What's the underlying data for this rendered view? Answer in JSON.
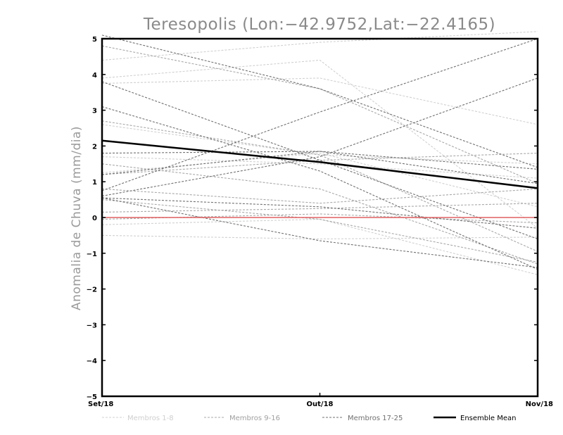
{
  "chart_data": {
    "type": "line",
    "title": "Teresopolis (Lon:−42.9752,Lat:−22.4165)",
    "ylabel": "Anomalia de Chuva (mm/dia)",
    "xlabel": "",
    "categories": [
      "Set/18",
      "Out/18",
      "Nov/18"
    ],
    "ylim": [
      -5,
      5
    ],
    "yticks": [
      -5,
      -4,
      -3,
      -2,
      -1,
      0,
      1,
      2,
      3,
      4,
      5
    ],
    "ytick_labels": [
      "−5",
      "−4",
      "−3",
      "−2",
      "−1",
      "0",
      "1",
      "2",
      "3",
      "4",
      "5"
    ],
    "grid": false,
    "legend_position": "bottom",
    "zero_line_color": "#e06060",
    "legend": [
      {
        "label": "Membros 1-8",
        "color": "#d0d0d0",
        "style": "dashed"
      },
      {
        "label": "Membros 9-16",
        "color": "#a8a8a8",
        "style": "dashed"
      },
      {
        "label": "Membros 17-25",
        "color": "#707070",
        "style": "dashed"
      },
      {
        "label": "Ensemble Mean",
        "color": "#000000",
        "style": "solid"
      }
    ],
    "series": [
      {
        "group": 0,
        "values": [
          4.4,
          4.9,
          5.2
        ]
      },
      {
        "group": 0,
        "values": [
          3.75,
          3.9,
          2.6
        ]
      },
      {
        "group": 0,
        "values": [
          2.6,
          1.75,
          1.5
        ]
      },
      {
        "group": 0,
        "values": [
          1.7,
          1.5,
          1.1
        ]
      },
      {
        "group": 0,
        "values": [
          1.25,
          1.8,
          0.3
        ]
      },
      {
        "group": 0,
        "values": [
          -0.2,
          -0.05,
          -1.6
        ]
      },
      {
        "group": 0,
        "values": [
          -0.5,
          -0.6,
          -0.55
        ]
      },
      {
        "group": 0,
        "values": [
          3.9,
          4.4,
          -0.3
        ]
      },
      {
        "group": 1,
        "values": [
          4.8,
          3.6,
          0.95
        ]
      },
      {
        "group": 1,
        "values": [
          2.7,
          1.75,
          -0.95
        ]
      },
      {
        "group": 1,
        "values": [
          1.5,
          0.8,
          -1.3
        ]
      },
      {
        "group": 1,
        "values": [
          0.8,
          0.4,
          0.8
        ]
      },
      {
        "group": 1,
        "values": [
          0.5,
          -0.05,
          -1.25
        ]
      },
      {
        "group": 1,
        "values": [
          -0.05,
          0.1,
          -0.15
        ]
      },
      {
        "group": 1,
        "values": [
          1.2,
          1.6,
          1.8
        ]
      },
      {
        "group": 1,
        "values": [
          0.15,
          0.25,
          0.4
        ]
      },
      {
        "group": 2,
        "values": [
          5.1,
          3.6,
          1.4
        ]
      },
      {
        "group": 2,
        "values": [
          3.8,
          1.6,
          -0.6
        ]
      },
      {
        "group": 2,
        "values": [
          3.1,
          1.3,
          -1.45
        ]
      },
      {
        "group": 2,
        "values": [
          1.8,
          1.85,
          1.35
        ]
      },
      {
        "group": 2,
        "values": [
          1.2,
          1.85,
          0.95
        ]
      },
      {
        "group": 2,
        "values": [
          0.75,
          2.95,
          5.0
        ]
      },
      {
        "group": 2,
        "values": [
          0.6,
          1.7,
          3.9
        ]
      },
      {
        "group": 2,
        "values": [
          0.55,
          -0.65,
          -1.4
        ]
      },
      {
        "group": 2,
        "values": [
          0.55,
          0.3,
          -0.3
        ]
      }
    ],
    "ensemble_mean": [
      2.15,
      1.55,
      0.82
    ],
    "zero_line": [
      0,
      0,
      0
    ]
  }
}
